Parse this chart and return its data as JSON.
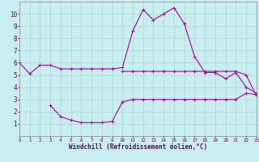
{
  "xlabel": "Windchill (Refroidissement éolien,°C)",
  "xlim": [
    0,
    23
  ],
  "ylim": [
    0,
    11
  ],
  "xticks": [
    0,
    1,
    2,
    3,
    4,
    5,
    6,
    7,
    8,
    9,
    10,
    11,
    12,
    13,
    14,
    15,
    16,
    17,
    18,
    19,
    20,
    21,
    22,
    23
  ],
  "yticks": [
    1,
    2,
    3,
    4,
    5,
    6,
    7,
    8,
    9,
    10
  ],
  "bg_color": "#c8eef0",
  "line_color": "#aa00aa",
  "grid_color": "#aad8d0",
  "label_color": "#660066",
  "curve1_x": [
    0,
    1,
    2,
    3,
    4,
    5,
    6,
    7,
    8,
    9,
    10,
    11,
    12,
    13,
    14,
    15,
    16,
    17,
    18,
    19,
    20,
    21,
    22,
    23
  ],
  "curve1_y": [
    6.0,
    5.1,
    5.8,
    5.8,
    5.5,
    5.5,
    5.5,
    5.5,
    5.5,
    5.5,
    5.6,
    8.6,
    10.35,
    9.5,
    10.0,
    10.5,
    9.2,
    6.5,
    5.2,
    5.2,
    4.7,
    5.2,
    4.0,
    3.5
  ],
  "curve2_x": [
    10,
    11,
    12,
    13,
    14,
    15,
    16,
    17,
    18,
    19,
    20,
    21,
    22,
    23
  ],
  "curve2_y": [
    5.3,
    5.3,
    5.3,
    5.3,
    5.3,
    5.3,
    5.3,
    5.3,
    5.3,
    5.3,
    5.3,
    5.3,
    5.0,
    3.3
  ],
  "curve3_x": [
    3,
    4,
    5,
    6,
    7,
    8,
    9,
    10,
    11,
    12,
    13,
    14,
    15,
    16,
    17,
    18,
    19,
    20,
    21,
    22,
    23
  ],
  "curve3_y": [
    2.5,
    1.6,
    1.3,
    1.1,
    1.1,
    1.1,
    1.2,
    2.8,
    3.0,
    3.0,
    3.0,
    3.0,
    3.0,
    3.0,
    3.0,
    3.0,
    3.0,
    3.0,
    3.0,
    3.5,
    3.4
  ]
}
